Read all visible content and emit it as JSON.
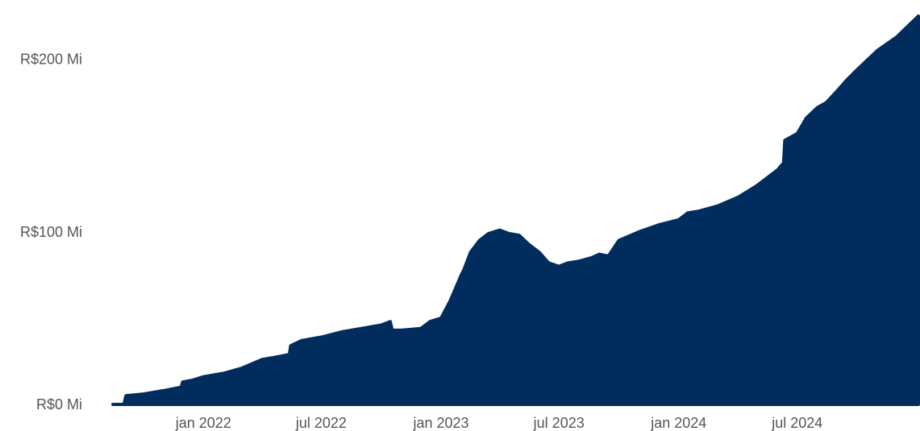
{
  "chart_data": {
    "type": "area",
    "title": "",
    "xlabel": "",
    "ylabel": "",
    "grid": false,
    "legend": "none",
    "colors": {
      "fill": "#002D5E",
      "text": "#555555",
      "background": "#FFFFFF"
    },
    "x_range": [
      "2021-08-15",
      "2025-01-03"
    ],
    "ylim": [
      0,
      225
    ],
    "y_ticks": [
      {
        "value": 0,
        "label": "R$0 Mi"
      },
      {
        "value": 100,
        "label": "R$100 Mi"
      },
      {
        "value": 200,
        "label": "R$200 Mi"
      }
    ],
    "x_ticks": [
      {
        "date": "2022-01-01",
        "label": "jan 2022"
      },
      {
        "date": "2022-07-01",
        "label": "jul 2022"
      },
      {
        "date": "2023-01-01",
        "label": "jan 2023"
      },
      {
        "date": "2023-07-01",
        "label": "jul 2023"
      },
      {
        "date": "2024-01-01",
        "label": "jan 2024"
      },
      {
        "date": "2024-07-01",
        "label": "jul 2024"
      }
    ],
    "series": [
      {
        "x": [
          "2021-08-15",
          "2021-09-01",
          "2021-09-04",
          "2021-10-01",
          "2021-11-01",
          "2021-11-28",
          "2021-11-30",
          "2021-12-15",
          "2022-01-01",
          "2022-02-01",
          "2022-03-01",
          "2022-04-01",
          "2022-05-01",
          "2022-05-13",
          "2022-05-15",
          "2022-06-01",
          "2022-07-01",
          "2022-08-01",
          "2022-09-01",
          "2022-10-01",
          "2022-10-15",
          "2022-10-18",
          "2022-11-01",
          "2022-12-01",
          "2022-12-15",
          "2023-01-01",
          "2023-01-15",
          "2023-02-01",
          "2023-02-05",
          "2023-02-15",
          "2023-03-01",
          "2023-03-15",
          "2023-04-01",
          "2023-04-15",
          "2023-05-01",
          "2023-05-15",
          "2023-06-01",
          "2023-06-15",
          "2023-07-01",
          "2023-07-15",
          "2023-08-01",
          "2023-08-20",
          "2023-09-01",
          "2023-09-15",
          "2023-10-01",
          "2023-11-01",
          "2023-12-01",
          "2024-01-01",
          "2024-01-15",
          "2024-02-01",
          "2024-03-01",
          "2024-04-01",
          "2024-05-01",
          "2024-06-01",
          "2024-06-10",
          "2024-06-12",
          "2024-07-01",
          "2024-07-15",
          "2024-08-01",
          "2024-08-15",
          "2024-09-01",
          "2024-09-15",
          "2024-10-01",
          "2024-10-15",
          "2024-11-01",
          "2024-12-01",
          "2025-01-03"
        ],
        "y": [
          0,
          0,
          5,
          6,
          8,
          10,
          13,
          14,
          16,
          18,
          21,
          26,
          28,
          29,
          34,
          37,
          39,
          42,
          44,
          46,
          48,
          43,
          43,
          44,
          48,
          50,
          60,
          75,
          78,
          88,
          95,
          99,
          101,
          99,
          98,
          93,
          88,
          82,
          80,
          82,
          83,
          85,
          87,
          86,
          95,
          100,
          104,
          107,
          111,
          112,
          115,
          120,
          127,
          136,
          140,
          153,
          157,
          166,
          172,
          175,
          182,
          188,
          194,
          199,
          205,
          213,
          225
        ]
      }
    ]
  }
}
